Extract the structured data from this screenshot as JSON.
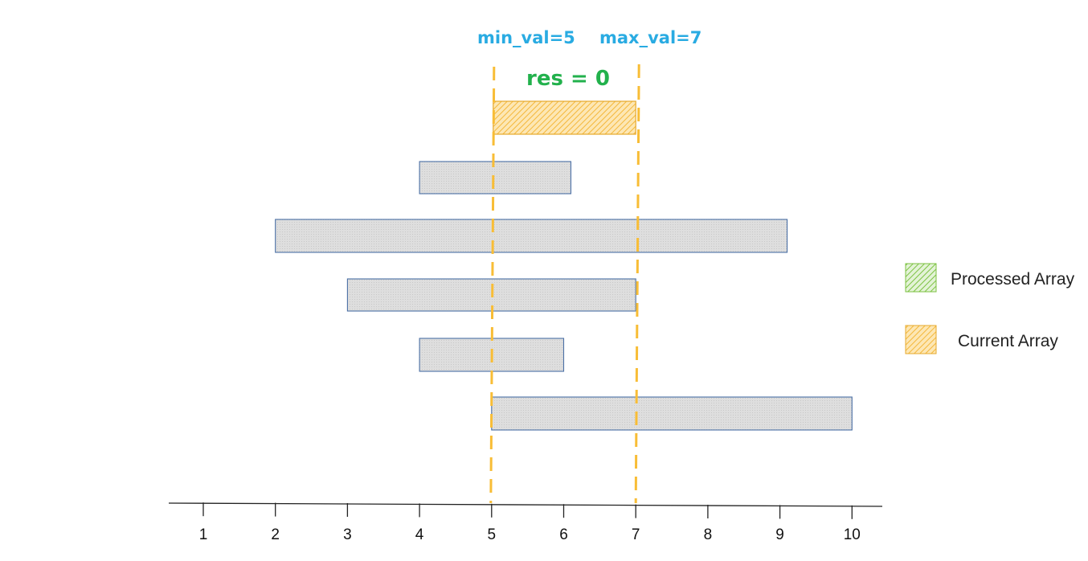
{
  "annotations": {
    "min_label": "min_val=5",
    "max_label": "max_val=7",
    "res_label": "res = 0",
    "min_value": 5,
    "max_value": 7,
    "label_color": "#29abe2",
    "res_color": "#22b14c",
    "guide_color": "#f8bd36"
  },
  "current_array": {
    "start": 5,
    "end": 7,
    "color": "#f8bd36"
  },
  "arrays": [
    {
      "start": 4,
      "end": 6.1
    },
    {
      "start": 2,
      "end": 9.1
    },
    {
      "start": 3,
      "end": 7
    },
    {
      "start": 4,
      "end": 6
    },
    {
      "start": 5,
      "end": 10
    }
  ],
  "array_fill": "#dcdcdc",
  "array_stroke": "#4a6fa5",
  "axis": {
    "ticks": [
      1,
      2,
      3,
      4,
      5,
      6,
      7,
      8,
      9,
      10
    ],
    "min": 1,
    "max": 10
  },
  "legend": [
    {
      "label": "Processed Array",
      "color": "#7cc242",
      "icon": "green-hatch-swatch"
    },
    {
      "label": "Current Array",
      "color": "#f8bd36",
      "icon": "orange-hatch-swatch"
    }
  ]
}
